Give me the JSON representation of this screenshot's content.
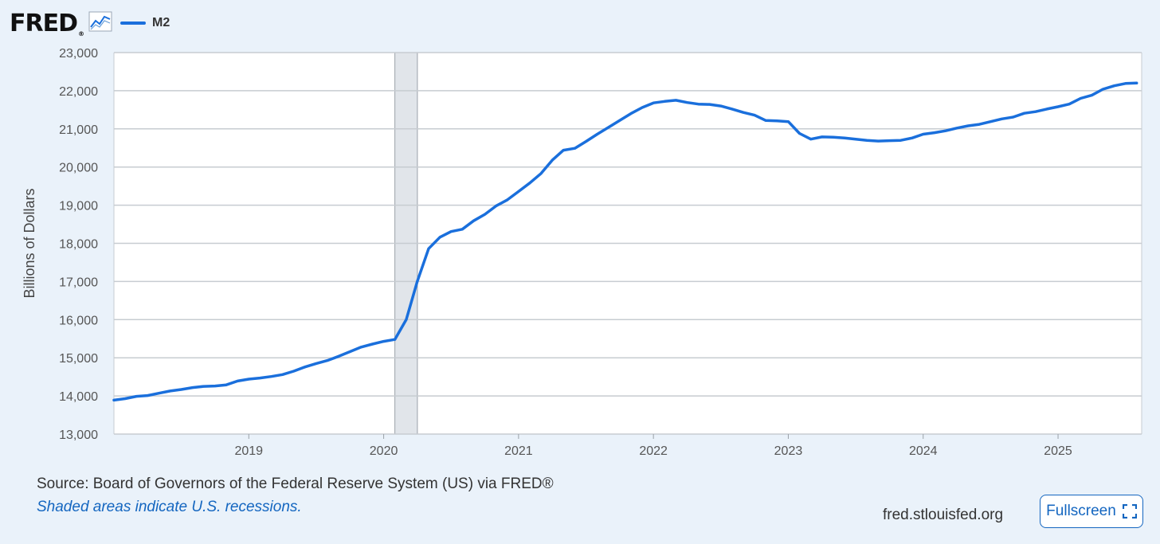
{
  "header": {
    "logo_text": "FRED",
    "logo_reg": "®",
    "logo_icon": "line-graph-icon",
    "legend_label": "M2"
  },
  "colors": {
    "series": "#1a6fdc",
    "background": "#eaf2fa",
    "plot_background": "#ffffff",
    "grid": "#c7ccd1",
    "recession": "#e1e5ea",
    "link": "#1466c0"
  },
  "chart_data": {
    "type": "line",
    "title": "",
    "xlabel": "",
    "ylabel": "Billions of Dollars",
    "xlim": [
      2018.0,
      2025.62
    ],
    "ylim": [
      13000,
      23000
    ],
    "yticks": [
      13000,
      14000,
      15000,
      16000,
      17000,
      18000,
      19000,
      20000,
      21000,
      22000,
      23000
    ],
    "ytick_labels": [
      "13,000",
      "14,000",
      "15,000",
      "16,000",
      "17,000",
      "18,000",
      "19,000",
      "20,000",
      "21,000",
      "22,000",
      "23,000"
    ],
    "xticks": [
      2019,
      2020,
      2021,
      2022,
      2023,
      2024,
      2025
    ],
    "xtick_labels": [
      "2019",
      "2020",
      "2021",
      "2022",
      "2023",
      "2024",
      "2025"
    ],
    "grid": true,
    "legend": "top-left",
    "recessions": [
      [
        2020.083,
        2020.25
      ]
    ],
    "series": [
      {
        "name": "M2",
        "x": [
          2018.0,
          2018.083,
          2018.167,
          2018.25,
          2018.333,
          2018.417,
          2018.5,
          2018.583,
          2018.667,
          2018.75,
          2018.833,
          2018.917,
          2019.0,
          2019.083,
          2019.167,
          2019.25,
          2019.333,
          2019.417,
          2019.5,
          2019.583,
          2019.667,
          2019.75,
          2019.833,
          2019.917,
          2020.0,
          2020.083,
          2020.167,
          2020.25,
          2020.333,
          2020.417,
          2020.5,
          2020.583,
          2020.667,
          2020.75,
          2020.833,
          2020.917,
          2021.0,
          2021.083,
          2021.167,
          2021.25,
          2021.333,
          2021.417,
          2021.5,
          2021.583,
          2021.667,
          2021.75,
          2021.833,
          2021.917,
          2022.0,
          2022.083,
          2022.167,
          2022.25,
          2022.333,
          2022.417,
          2022.5,
          2022.583,
          2022.667,
          2022.75,
          2022.833,
          2022.917,
          2023.0,
          2023.083,
          2023.167,
          2023.25,
          2023.333,
          2023.417,
          2023.5,
          2023.583,
          2023.667,
          2023.75,
          2023.833,
          2023.917,
          2024.0,
          2024.083,
          2024.167,
          2024.25,
          2024.333,
          2024.417,
          2024.5,
          2024.583,
          2024.667,
          2024.75,
          2024.833,
          2024.917,
          2025.0,
          2025.083,
          2025.167,
          2025.25,
          2025.333,
          2025.417,
          2025.5,
          2025.583
        ],
        "y": [
          13890,
          13930,
          13990,
          14010,
          14070,
          14130,
          14170,
          14220,
          14250,
          14260,
          14290,
          14390,
          14440,
          14470,
          14510,
          14560,
          14650,
          14760,
          14850,
          14930,
          15040,
          15160,
          15280,
          15360,
          15430,
          15480,
          16000,
          17010,
          17860,
          18160,
          18310,
          18370,
          18590,
          18760,
          18980,
          19140,
          19360,
          19580,
          19830,
          20180,
          20440,
          20490,
          20670,
          20860,
          21040,
          21220,
          21400,
          21560,
          21680,
          21720,
          21750,
          21690,
          21650,
          21640,
          21600,
          21520,
          21430,
          21360,
          21220,
          21210,
          21190,
          20880,
          20730,
          20790,
          20780,
          20760,
          20730,
          20700,
          20680,
          20690,
          20700,
          20760,
          20860,
          20900,
          20950,
          21020,
          21080,
          21120,
          21190,
          21260,
          21310,
          21410,
          21450,
          21520,
          21580,
          21650,
          21800,
          21880,
          22040,
          22130,
          22190,
          22200
        ]
      }
    ]
  },
  "footer": {
    "source": "Source: Board of Governors of the Federal Reserve System (US) via FRED®",
    "recession_note": "Shaded areas indicate U.S. recessions.",
    "url": "fred.stlouisfed.org",
    "fullscreen_label": "Fullscreen",
    "fullscreen_icon": "fullscreen-icon"
  }
}
